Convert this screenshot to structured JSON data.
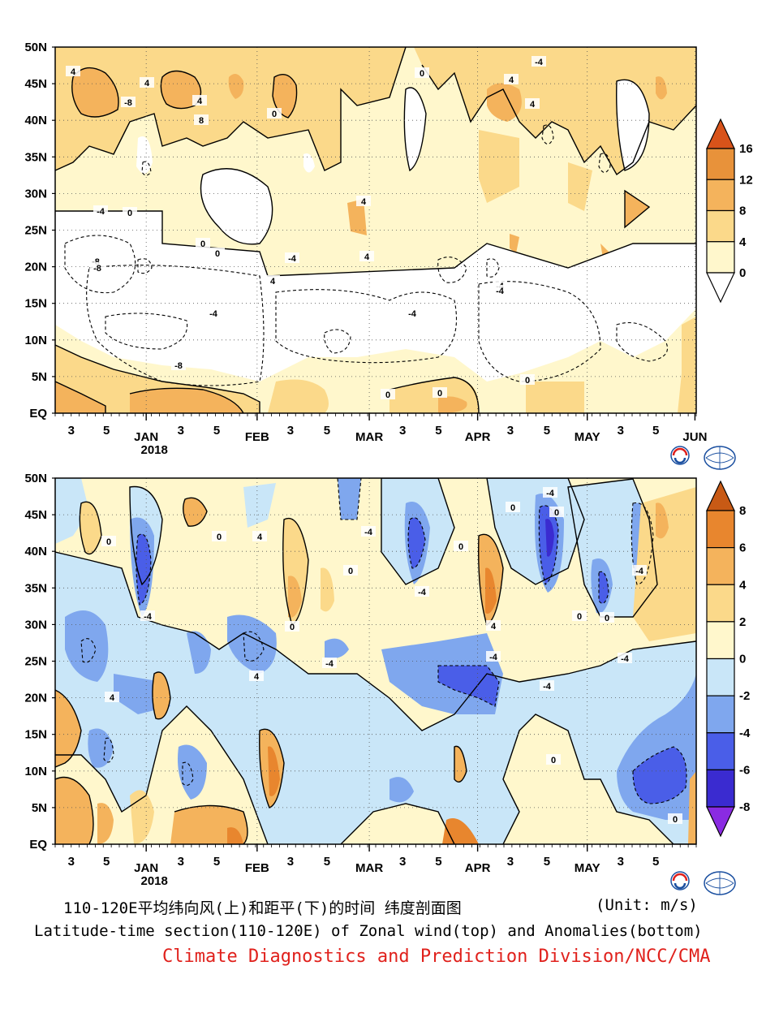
{
  "chart_data": [
    {
      "type": "contour",
      "panel": "top",
      "field": "zonal wind",
      "ylabels": [
        "50N",
        "45N",
        "40N",
        "35N",
        "30N",
        "25N",
        "20N",
        "15N",
        "10N",
        "5N",
        "EQ"
      ],
      "xticks": [
        {
          "label": "3",
          "sub": ""
        },
        {
          "label": "5",
          "sub": ""
        },
        {
          "label": "JAN",
          "sub": "2018"
        },
        {
          "label": "3",
          "sub": ""
        },
        {
          "label": "5",
          "sub": ""
        },
        {
          "label": "FEB",
          "sub": ""
        },
        {
          "label": "3",
          "sub": ""
        },
        {
          "label": "5",
          "sub": ""
        },
        {
          "label": "MAR",
          "sub": ""
        },
        {
          "label": "3",
          "sub": ""
        },
        {
          "label": "5",
          "sub": ""
        },
        {
          "label": "APR",
          "sub": ""
        },
        {
          "label": "3",
          "sub": ""
        },
        {
          "label": "5",
          "sub": ""
        },
        {
          "label": "MAY",
          "sub": ""
        },
        {
          "label": "3",
          "sub": ""
        },
        {
          "label": "5",
          "sub": ""
        },
        {
          "label": "JUN",
          "sub": ""
        }
      ],
      "colorbar_levels": [
        "16",
        "12",
        "8",
        "4",
        "0"
      ],
      "colorbar_colors": [
        "#d8531a",
        "#e8923a",
        "#f4b35c",
        "#fbd98a",
        "#fff7cc"
      ],
      "contour_labels": [
        "4",
        "-8",
        "4",
        "-8",
        "4",
        "8",
        "-4",
        "0",
        "-4",
        "-8",
        "0",
        "4",
        "0",
        "4",
        "0",
        "-4",
        "0",
        "4",
        "-4",
        "0",
        "4",
        "-4",
        "0",
        "-4",
        "4",
        "-4",
        "-8",
        "0"
      ]
    },
    {
      "type": "contour",
      "panel": "bottom",
      "field": "zonal wind anomaly",
      "ylabels": [
        "50N",
        "45N",
        "40N",
        "35N",
        "30N",
        "25N",
        "20N",
        "15N",
        "10N",
        "5N",
        "EQ"
      ],
      "xticks": [
        {
          "label": "3",
          "sub": ""
        },
        {
          "label": "5",
          "sub": ""
        },
        {
          "label": "JAN",
          "sub": "2018"
        },
        {
          "label": "3",
          "sub": ""
        },
        {
          "label": "5",
          "sub": ""
        },
        {
          "label": "FEB",
          "sub": ""
        },
        {
          "label": "3",
          "sub": ""
        },
        {
          "label": "5",
          "sub": ""
        },
        {
          "label": "MAR",
          "sub": ""
        },
        {
          "label": "3",
          "sub": ""
        },
        {
          "label": "5",
          "sub": ""
        },
        {
          "label": "APR",
          "sub": ""
        },
        {
          "label": "3",
          "sub": ""
        },
        {
          "label": "5",
          "sub": ""
        },
        {
          "label": "MAY",
          "sub": ""
        },
        {
          "label": "3",
          "sub": ""
        },
        {
          "label": "5",
          "sub": ""
        }
      ],
      "colorbar_levels": [
        "8",
        "6",
        "4",
        "2",
        "0",
        "-2",
        "-4",
        "-6",
        "-8"
      ],
      "colorbar_colors": [
        "#c85a15",
        "#e8862e",
        "#f4b35c",
        "#fbd98a",
        "#fff7cc",
        "#c9e6f8",
        "#7fa7ee",
        "#4a5ee8",
        "#3a2bd0",
        "#8a2be2"
      ],
      "contour_labels": [
        "0",
        "-4",
        "4",
        "-4",
        "0",
        "0",
        "4",
        "0",
        "-4",
        "-4",
        "0",
        "-4",
        "4",
        "-4",
        "-4",
        "0",
        "0",
        "4",
        "0",
        "-4",
        "0",
        "-4",
        "0",
        "0"
      ]
    }
  ],
  "captions": {
    "line1": "110-120E平均纬向风(上)和距平(下)的时间 纬度剖面图",
    "unit": "(Unit: m/s)",
    "line2": "Latitude-time section(110-120E) of Zonal wind(top) and Anomalies(bottom)",
    "line3": "Climate Diagnostics and Prediction Division/NCC/CMA"
  },
  "logos": {
    "bcc": "BCC",
    "ncc": "NCC"
  },
  "colors": {
    "caption_red": "#e0211c"
  }
}
